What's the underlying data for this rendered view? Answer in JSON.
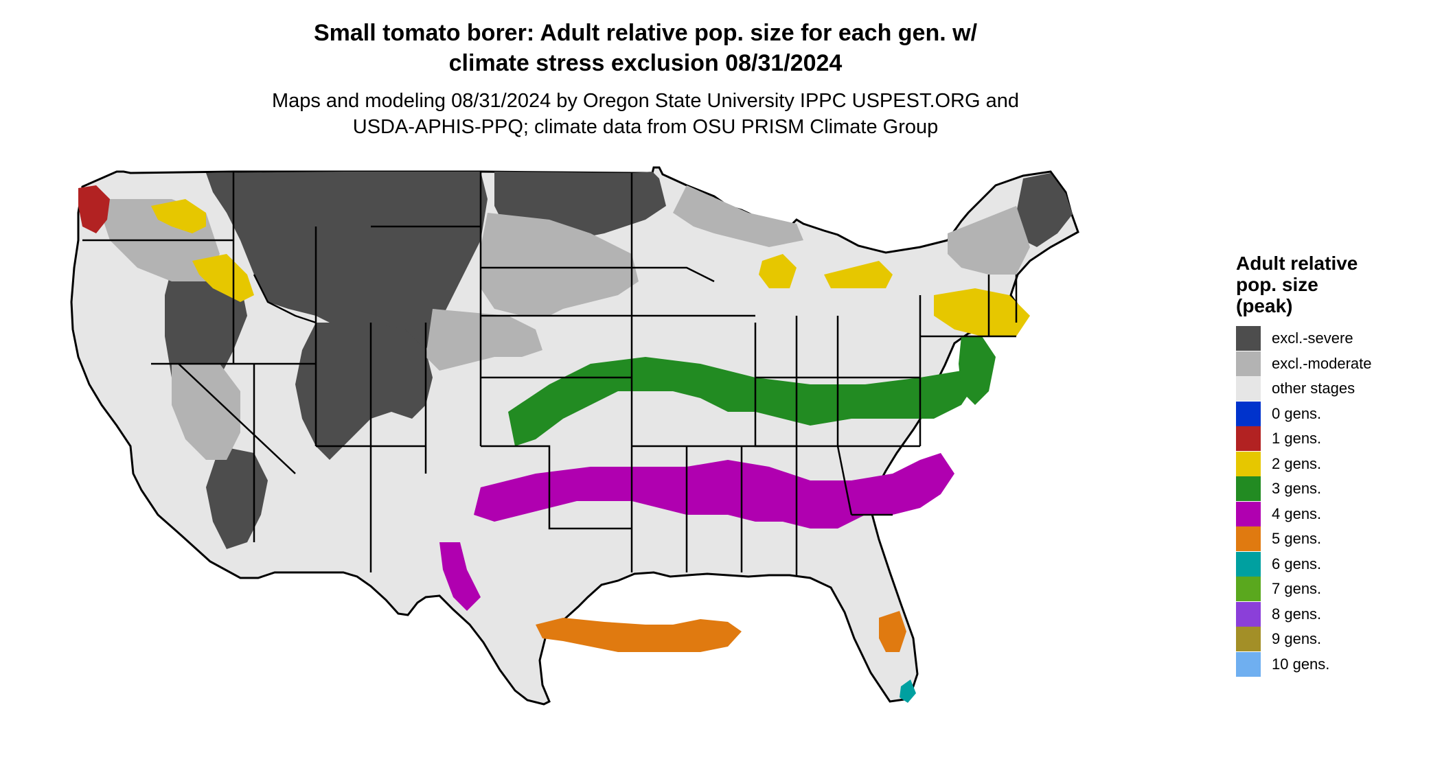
{
  "title_line1": "Small tomato borer: Adult relative pop. size for each gen. w/",
  "title_line2": "climate stress exclusion 08/31/2024",
  "subtitle_line1": "Maps and modeling 08/31/2024 by Oregon State University IPPC USPEST.ORG and",
  "subtitle_line2": "USDA-APHIS-PPQ; climate data from OSU PRISM Climate Group",
  "legend": {
    "title_line1": "Adult relative",
    "title_line2": "pop. size",
    "title_line3": "(peak)",
    "items": [
      {
        "label": "excl.-severe",
        "color": "#4d4d4d"
      },
      {
        "label": "excl.-moderate",
        "color": "#b3b3b3"
      },
      {
        "label": "other stages",
        "color": "#e6e6e6"
      },
      {
        "label": "0 gens.",
        "color": "#0033cc"
      },
      {
        "label": "1 gens.",
        "color": "#b22222"
      },
      {
        "label": "2 gens.",
        "color": "#e6c700"
      },
      {
        "label": "3 gens.",
        "color": "#228b22"
      },
      {
        "label": "4 gens.",
        "color": "#b000b0"
      },
      {
        "label": "5 gens.",
        "color": "#e07a10"
      },
      {
        "label": "6 gens.",
        "color": "#00a0a0"
      },
      {
        "label": "7 gens.",
        "color": "#5aa81e"
      },
      {
        "label": "8 gens.",
        "color": "#8b3fd9"
      },
      {
        "label": "9 gens.",
        "color": "#a38f27"
      },
      {
        "label": "10 gens.",
        "color": "#6faff0"
      }
    ]
  }
}
